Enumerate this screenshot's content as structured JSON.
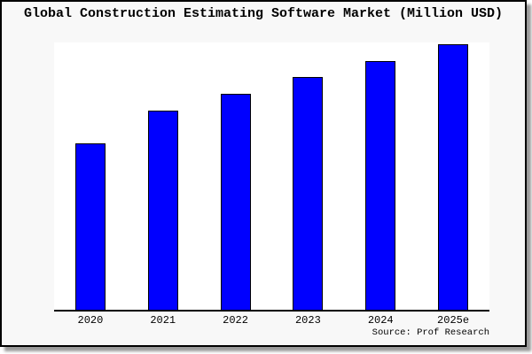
{
  "title": "Global Construction Estimating Software Market (Million USD)",
  "source_note": "Source: Prof Research",
  "colors": {
    "bar_fill": "#0000FF",
    "bar_border": "#000000",
    "frame_background": "#f8f8f8",
    "plot_background": "#ffffff",
    "axis": "#000000",
    "shadow": "#999999"
  },
  "chart_data": {
    "type": "bar",
    "title": "Global Construction Estimating Software Market (Million USD)",
    "categories": [
      "2020",
      "2021",
      "2022",
      "2023",
      "2024",
      "2025e"
    ],
    "values": [
      188,
      225,
      244,
      263,
      281,
      300
    ],
    "value_note": "Relative bar heights in pixels; the chart displays no y-axis, gridlines, or data labels, so absolute values are not shown.",
    "xlabel": "",
    "ylabel": "",
    "legend": false,
    "grid": false,
    "bar_color": "#0000FF",
    "annotations": [
      "Source: Prof Research"
    ]
  }
}
